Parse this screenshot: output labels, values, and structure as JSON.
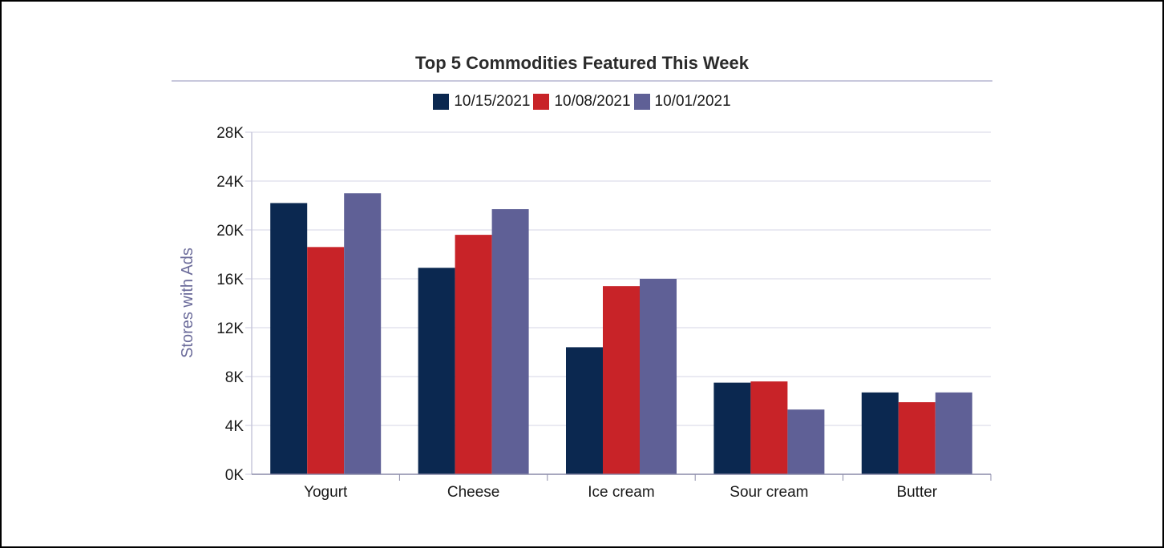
{
  "chart_data": {
    "type": "bar",
    "title": "Top 5 Commodities Featured This Week",
    "xlabel": "",
    "ylabel": "Stores with Ads",
    "ylim": [
      0,
      28000
    ],
    "yticks": [
      0,
      4000,
      8000,
      12000,
      16000,
      20000,
      24000,
      28000
    ],
    "ytick_labels": [
      "0K",
      "4K",
      "8K",
      "12K",
      "16K",
      "20K",
      "24K",
      "28K"
    ],
    "categories": [
      "Yogurt",
      "Cheese",
      "Ice cream",
      "Sour cream",
      "Butter"
    ],
    "series": [
      {
        "name": "10/15/2021",
        "color": "#0b2850",
        "values": [
          22200,
          16900,
          10400,
          7500,
          6700
        ]
      },
      {
        "name": "10/08/2021",
        "color": "#c82328",
        "values": [
          18600,
          19600,
          15400,
          7600,
          5900
        ]
      },
      {
        "name": "10/01/2021",
        "color": "#5f6096",
        "values": [
          23000,
          21700,
          16000,
          5300,
          6700
        ]
      }
    ],
    "grid": true,
    "legend_position": "top-center"
  }
}
